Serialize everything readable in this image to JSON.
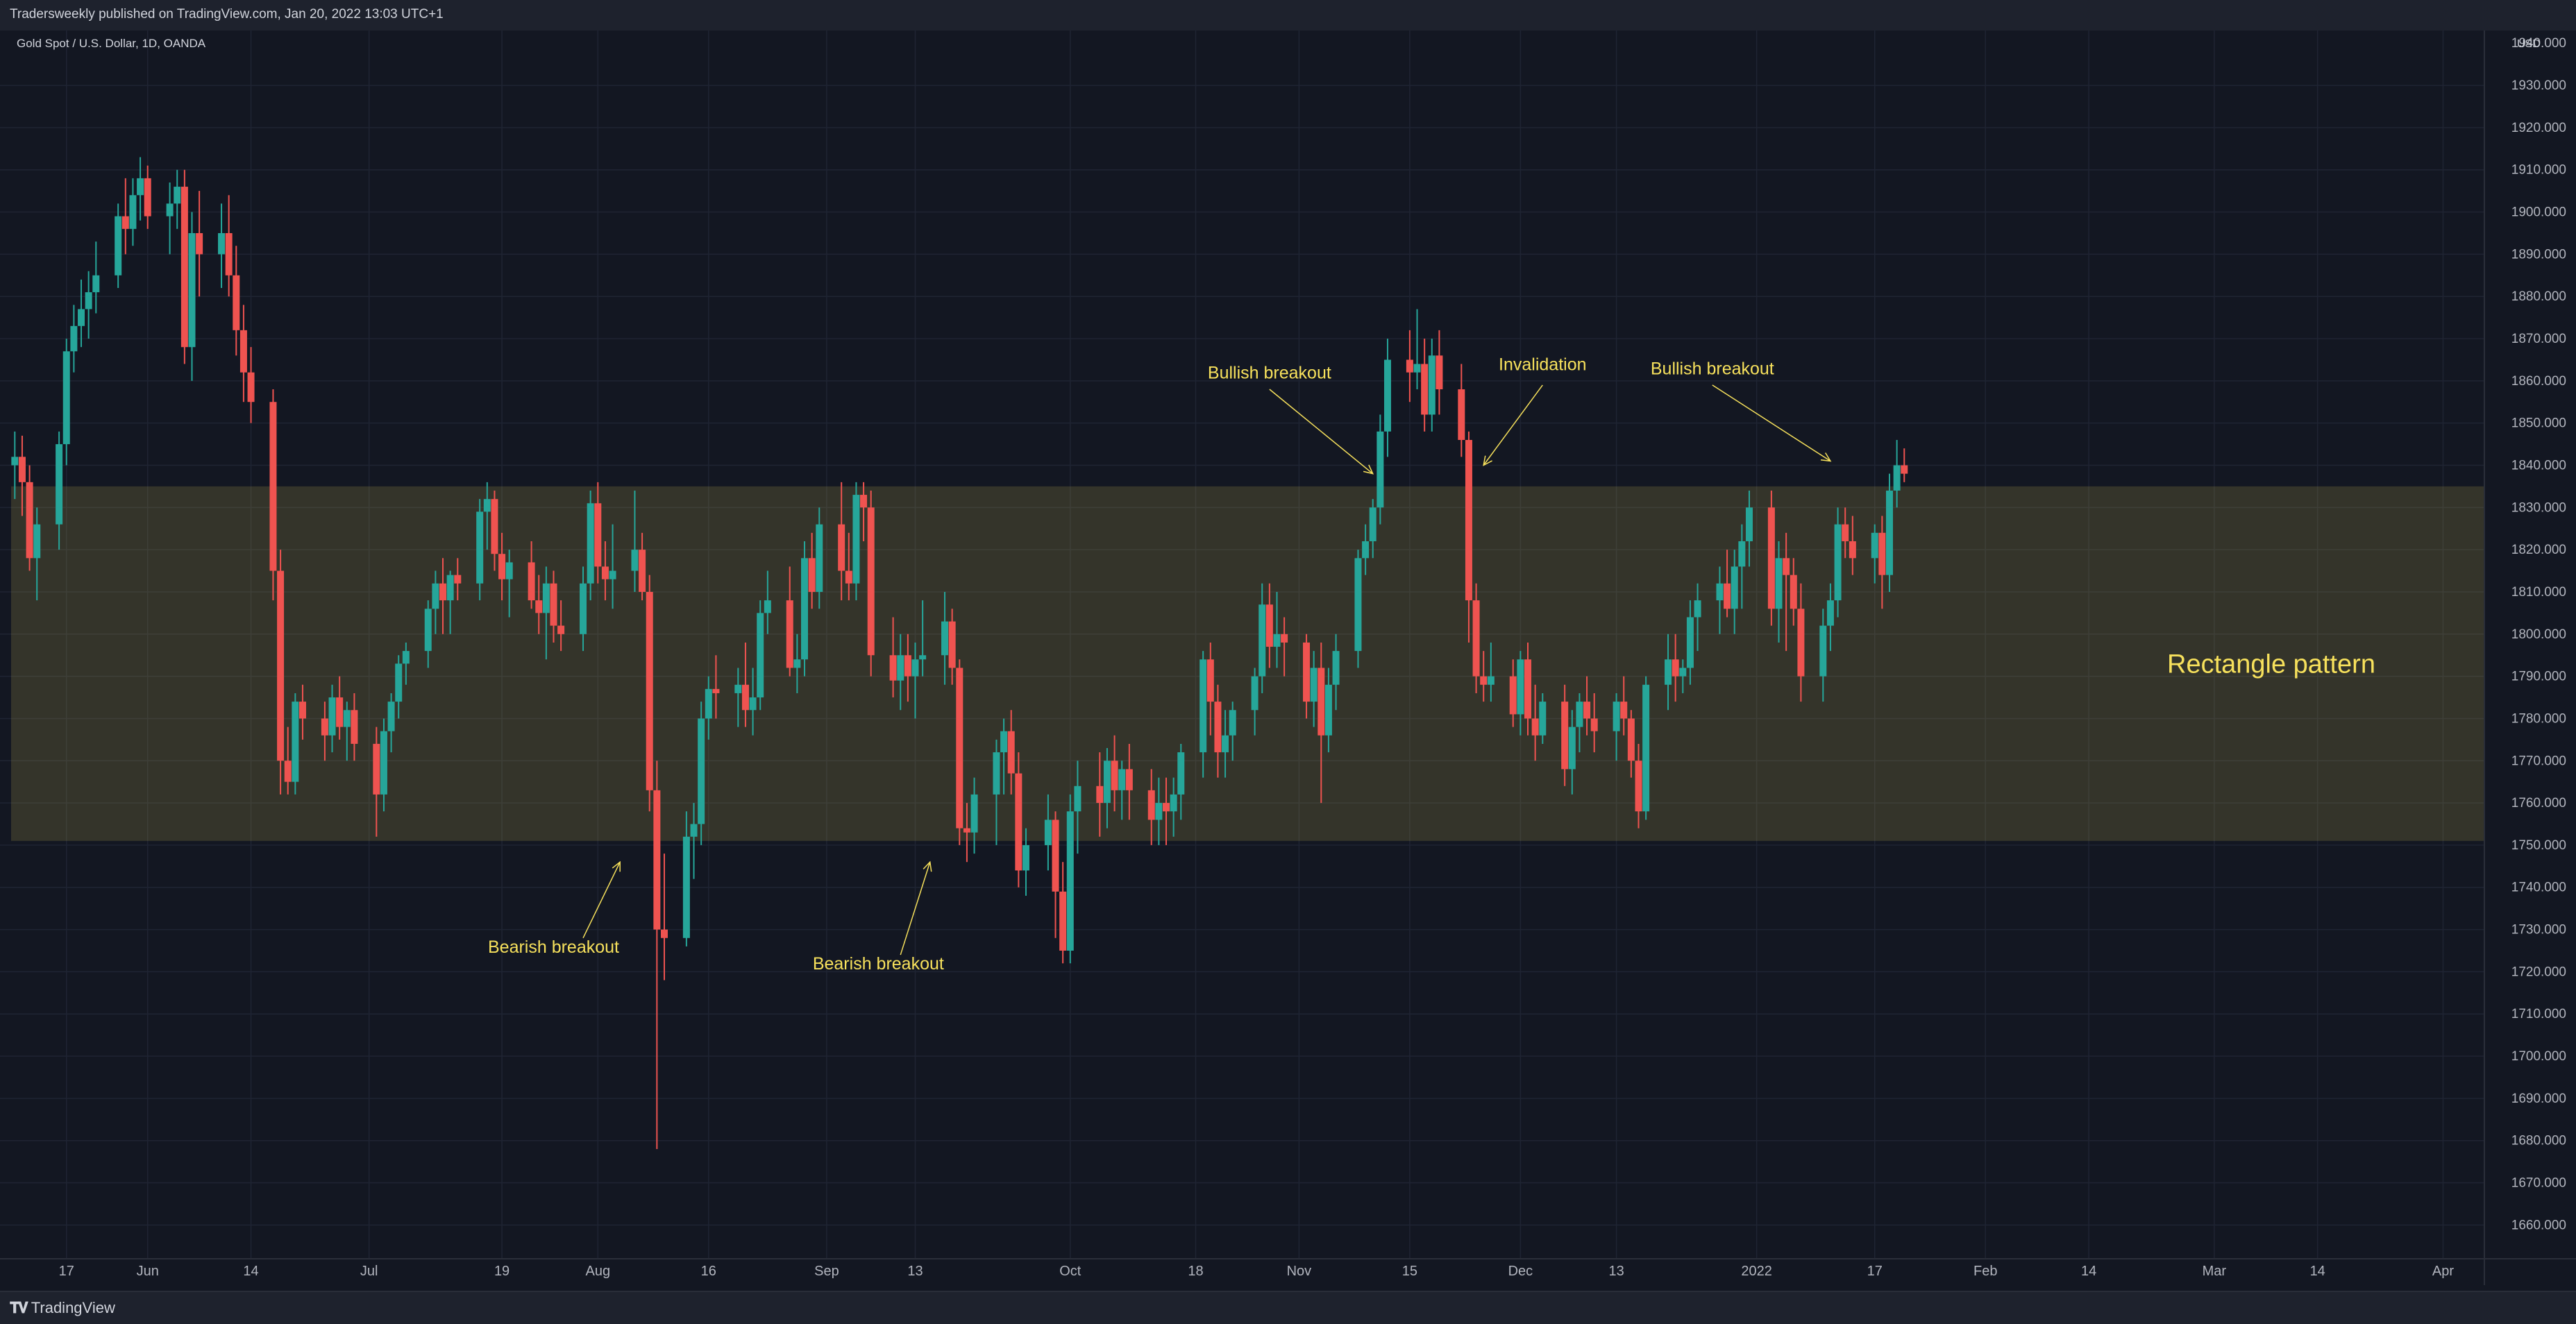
{
  "header": {
    "publisher_text": "Tradersweekly published on TradingView.com, Jan 20, 2022 13:03 UTC+1"
  },
  "footer": {
    "brand": "TradingView"
  },
  "chart_data": {
    "type": "candlestick",
    "title": "Gold Spot / U.S. Dollar, 1D, OANDA",
    "currency": "USD",
    "ylim": [
      1652,
      1943
    ],
    "y_ticks": [
      1660,
      1670,
      1680,
      1690,
      1700,
      1710,
      1720,
      1730,
      1740,
      1750,
      1760,
      1770,
      1780,
      1790,
      1800,
      1810,
      1820,
      1830,
      1840,
      1850,
      1860,
      1870,
      1880,
      1890,
      1900,
      1910,
      1920,
      1930
    ],
    "y_top_partial": "1940.000",
    "x_range_days": [
      -7,
      234
    ],
    "x_ticks": [
      {
        "day": 0,
        "label": "17"
      },
      {
        "day": 11,
        "label": "Jun"
      },
      {
        "day": 25,
        "label": "14"
      },
      {
        "day": 41,
        "label": "Jul"
      },
      {
        "day": 59,
        "label": "19"
      },
      {
        "day": 72,
        "label": "Aug"
      },
      {
        "day": 87,
        "label": "16"
      },
      {
        "day": 103,
        "label": "Sep"
      },
      {
        "day": 115,
        "label": "13"
      },
      {
        "day": 136,
        "label": "Oct"
      },
      {
        "day": 153,
        "label": "18"
      },
      {
        "day": 167,
        "label": "Nov"
      },
      {
        "day": 182,
        "label": "15"
      },
      {
        "day": 197,
        "label": "Dec"
      },
      {
        "day": 210,
        "label": "13"
      },
      {
        "day": 229,
        "label": "2022"
      },
      {
        "day": 245,
        "label": "17"
      },
      {
        "day": 260,
        "label": "Feb"
      },
      {
        "day": 274,
        "label": "14"
      },
      {
        "day": 291,
        "label": "Mar"
      },
      {
        "day": 305,
        "label": "14"
      },
      {
        "day": 322,
        "label": "Apr"
      }
    ],
    "rectangle": {
      "low": 1751,
      "high": 1835,
      "label": "Rectangle pattern"
    },
    "candles": [
      [
        -7,
        1840,
        1848,
        1832,
        1842
      ],
      [
        -6,
        1842,
        1847,
        1828,
        1836
      ],
      [
        -5,
        1836,
        1840,
        1815,
        1818
      ],
      [
        -4,
        1818,
        1830,
        1808,
        1826
      ],
      [
        -1,
        1826,
        1848,
        1820,
        1845
      ],
      [
        0,
        1845,
        1870,
        1840,
        1867
      ],
      [
        1,
        1867,
        1878,
        1862,
        1873
      ],
      [
        2,
        1873,
        1884,
        1868,
        1877
      ],
      [
        3,
        1877,
        1886,
        1870,
        1881
      ],
      [
        4,
        1881,
        1893,
        1876,
        1885
      ],
      [
        7,
        1885,
        1902,
        1882,
        1899
      ],
      [
        8,
        1899,
        1908,
        1890,
        1896
      ],
      [
        9,
        1896,
        1908,
        1892,
        1904
      ],
      [
        10,
        1904,
        1913,
        1898,
        1908
      ],
      [
        11,
        1908,
        1911,
        1896,
        1899
      ],
      [
        14,
        1899,
        1907,
        1890,
        1902
      ],
      [
        15,
        1902,
        1910,
        1896,
        1906
      ],
      [
        16,
        1906,
        1910,
        1864,
        1868
      ],
      [
        17,
        1868,
        1900,
        1860,
        1895
      ],
      [
        18,
        1895,
        1905,
        1880,
        1890
      ],
      [
        21,
        1890,
        1902,
        1882,
        1895
      ],
      [
        22,
        1895,
        1904,
        1880,
        1885
      ],
      [
        23,
        1885,
        1892,
        1866,
        1872
      ],
      [
        24,
        1872,
        1878,
        1855,
        1862
      ],
      [
        25,
        1862,
        1868,
        1850,
        1855
      ],
      [
        28,
        1855,
        1858,
        1808,
        1815
      ],
      [
        29,
        1815,
        1820,
        1762,
        1770
      ],
      [
        30,
        1770,
        1778,
        1762,
        1765
      ],
      [
        31,
        1765,
        1786,
        1762,
        1784
      ],
      [
        32,
        1784,
        1788,
        1775,
        1780
      ],
      [
        35,
        1780,
        1784,
        1770,
        1776
      ],
      [
        36,
        1776,
        1788,
        1772,
        1785
      ],
      [
        37,
        1785,
        1790,
        1775,
        1778
      ],
      [
        38,
        1778,
        1784,
        1770,
        1782
      ],
      [
        39,
        1782,
        1786,
        1770,
        1774
      ],
      [
        42,
        1774,
        1778,
        1752,
        1762
      ],
      [
        43,
        1762,
        1780,
        1758,
        1777
      ],
      [
        44,
        1777,
        1786,
        1772,
        1784
      ],
      [
        45,
        1784,
        1795,
        1780,
        1793
      ],
      [
        46,
        1793,
        1798,
        1788,
        1796
      ],
      [
        49,
        1796,
        1808,
        1792,
        1806
      ],
      [
        50,
        1806,
        1815,
        1800,
        1812
      ],
      [
        51,
        1812,
        1818,
        1800,
        1808
      ],
      [
        52,
        1808,
        1815,
        1800,
        1814
      ],
      [
        53,
        1814,
        1818,
        1808,
        1812
      ],
      [
        56,
        1812,
        1832,
        1808,
        1829
      ],
      [
        57,
        1829,
        1836,
        1820,
        1832
      ],
      [
        58,
        1832,
        1834,
        1815,
        1819
      ],
      [
        59,
        1819,
        1824,
        1808,
        1813
      ],
      [
        60,
        1813,
        1820,
        1804,
        1817
      ],
      [
        63,
        1817,
        1822,
        1806,
        1808
      ],
      [
        64,
        1808,
        1814,
        1800,
        1805
      ],
      [
        65,
        1805,
        1816,
        1794,
        1812
      ],
      [
        66,
        1812,
        1815,
        1798,
        1802
      ],
      [
        67,
        1802,
        1808,
        1796,
        1800
      ],
      [
        70,
        1800,
        1816,
        1796,
        1812
      ],
      [
        71,
        1812,
        1834,
        1808,
        1831
      ],
      [
        72,
        1831,
        1836,
        1812,
        1816
      ],
      [
        73,
        1816,
        1822,
        1808,
        1813
      ],
      [
        74,
        1813,
        1826,
        1806,
        1815
      ],
      [
        77,
        1815,
        1834,
        1810,
        1820
      ],
      [
        78,
        1820,
        1824,
        1808,
        1810
      ],
      [
        79,
        1810,
        1814,
        1758,
        1763
      ],
      [
        80,
        1763,
        1770,
        1678,
        1730
      ],
      [
        81,
        1730,
        1748,
        1718,
        1728
      ],
      [
        84,
        1728,
        1758,
        1726,
        1752
      ],
      [
        85,
        1752,
        1760,
        1742,
        1755
      ],
      [
        86,
        1755,
        1784,
        1750,
        1780
      ],
      [
        87,
        1780,
        1790,
        1775,
        1787
      ],
      [
        88,
        1787,
        1795,
        1780,
        1786
      ],
      [
        91,
        1786,
        1792,
        1778,
        1788
      ],
      [
        92,
        1788,
        1798,
        1778,
        1782
      ],
      [
        93,
        1782,
        1792,
        1776,
        1785
      ],
      [
        94,
        1785,
        1808,
        1782,
        1805
      ],
      [
        95,
        1805,
        1815,
        1800,
        1808
      ],
      [
        98,
        1808,
        1816,
        1790,
        1792
      ],
      [
        99,
        1792,
        1800,
        1786,
        1794
      ],
      [
        100,
        1794,
        1822,
        1790,
        1818
      ],
      [
        101,
        1818,
        1824,
        1806,
        1810
      ],
      [
        102,
        1810,
        1830,
        1806,
        1826
      ],
      [
        105,
        1826,
        1836,
        1808,
        1815
      ],
      [
        106,
        1815,
        1824,
        1808,
        1812
      ],
      [
        107,
        1812,
        1836,
        1808,
        1833
      ],
      [
        108,
        1833,
        1836,
        1822,
        1830
      ],
      [
        109,
        1830,
        1834,
        1790,
        1795
      ],
      [
        112,
        1795,
        1804,
        1785,
        1789
      ],
      [
        113,
        1789,
        1800,
        1782,
        1795
      ],
      [
        114,
        1795,
        1800,
        1784,
        1790
      ],
      [
        115,
        1790,
        1798,
        1780,
        1794
      ],
      [
        116,
        1794,
        1808,
        1790,
        1795
      ],
      [
        119,
        1795,
        1810,
        1788,
        1803
      ],
      [
        120,
        1803,
        1806,
        1788,
        1792
      ],
      [
        121,
        1792,
        1794,
        1750,
        1754
      ],
      [
        122,
        1754,
        1760,
        1746,
        1753
      ],
      [
        123,
        1753,
        1766,
        1748,
        1762
      ],
      [
        126,
        1762,
        1775,
        1750,
        1772
      ],
      [
        127,
        1772,
        1780,
        1762,
        1777
      ],
      [
        128,
        1777,
        1782,
        1762,
        1767
      ],
      [
        129,
        1767,
        1772,
        1740,
        1744
      ],
      [
        130,
        1744,
        1754,
        1738,
        1750
      ],
      [
        133,
        1750,
        1762,
        1744,
        1756
      ],
      [
        134,
        1756,
        1758,
        1728,
        1739
      ],
      [
        135,
        1739,
        1746,
        1722,
        1725
      ],
      [
        136,
        1725,
        1762,
        1722,
        1758
      ],
      [
        137,
        1758,
        1770,
        1748,
        1764
      ],
      [
        140,
        1764,
        1772,
        1752,
        1760
      ],
      [
        141,
        1760,
        1773,
        1754,
        1770
      ],
      [
        142,
        1770,
        1776,
        1758,
        1763
      ],
      [
        143,
        1763,
        1770,
        1756,
        1768
      ],
      [
        144,
        1768,
        1774,
        1756,
        1763
      ],
      [
        147,
        1763,
        1768,
        1750,
        1756
      ],
      [
        148,
        1756,
        1766,
        1750,
        1760
      ],
      [
        149,
        1760,
        1766,
        1750,
        1758
      ],
      [
        150,
        1758,
        1766,
        1752,
        1762
      ],
      [
        151,
        1762,
        1774,
        1756,
        1772
      ],
      [
        154,
        1772,
        1796,
        1766,
        1794
      ],
      [
        155,
        1794,
        1798,
        1776,
        1784
      ],
      [
        156,
        1784,
        1788,
        1766,
        1772
      ],
      [
        157,
        1772,
        1782,
        1766,
        1776
      ],
      [
        158,
        1776,
        1784,
        1770,
        1782
      ],
      [
        161,
        1782,
        1792,
        1776,
        1790
      ],
      [
        162,
        1790,
        1812,
        1786,
        1807
      ],
      [
        163,
        1807,
        1812,
        1792,
        1797
      ],
      [
        164,
        1797,
        1810,
        1792,
        1800
      ],
      [
        165,
        1800,
        1804,
        1790,
        1798
      ],
      [
        168,
        1798,
        1800,
        1780,
        1784
      ],
      [
        169,
        1784,
        1796,
        1778,
        1792
      ],
      [
        170,
        1792,
        1798,
        1760,
        1776
      ],
      [
        171,
        1776,
        1792,
        1772,
        1788
      ],
      [
        172,
        1788,
        1800,
        1782,
        1796
      ],
      [
        175,
        1796,
        1820,
        1792,
        1818
      ],
      [
        176,
        1818,
        1826,
        1814,
        1822
      ],
      [
        177,
        1822,
        1832,
        1818,
        1830
      ],
      [
        178,
        1830,
        1852,
        1826,
        1848
      ],
      [
        179,
        1848,
        1870,
        1842,
        1865
      ],
      [
        182,
        1865,
        1872,
        1855,
        1862
      ],
      [
        183,
        1862,
        1877,
        1858,
        1864
      ],
      [
        184,
        1864,
        1870,
        1848,
        1852
      ],
      [
        185,
        1852,
        1870,
        1848,
        1866
      ],
      [
        186,
        1866,
        1872,
        1852,
        1858
      ],
      [
        189,
        1858,
        1864,
        1842,
        1846
      ],
      [
        190,
        1846,
        1848,
        1798,
        1808
      ],
      [
        191,
        1808,
        1812,
        1786,
        1790
      ],
      [
        192,
        1790,
        1796,
        1784,
        1788
      ],
      [
        193,
        1788,
        1798,
        1784,
        1790
      ],
      [
        196,
        1790,
        1794,
        1778,
        1781
      ],
      [
        197,
        1781,
        1796,
        1776,
        1794
      ],
      [
        198,
        1794,
        1798,
        1776,
        1780
      ],
      [
        199,
        1780,
        1788,
        1770,
        1776
      ],
      [
        200,
        1776,
        1786,
        1774,
        1784
      ],
      [
        203,
        1784,
        1788,
        1764,
        1768
      ],
      [
        204,
        1768,
        1782,
        1762,
        1778
      ],
      [
        205,
        1778,
        1786,
        1772,
        1784
      ],
      [
        206,
        1784,
        1790,
        1776,
        1780
      ],
      [
        207,
        1780,
        1786,
        1772,
        1777
      ],
      [
        210,
        1777,
        1786,
        1770,
        1784
      ],
      [
        211,
        1784,
        1790,
        1776,
        1780
      ],
      [
        212,
        1780,
        1782,
        1766,
        1770
      ],
      [
        213,
        1770,
        1774,
        1754,
        1758
      ],
      [
        214,
        1758,
        1790,
        1756,
        1788
      ],
      [
        217,
        1788,
        1800,
        1782,
        1794
      ],
      [
        218,
        1794,
        1800,
        1784,
        1790
      ],
      [
        219,
        1790,
        1794,
        1786,
        1792
      ],
      [
        220,
        1792,
        1808,
        1788,
        1804
      ],
      [
        221,
        1804,
        1812,
        1796,
        1808
      ],
      [
        224,
        1808,
        1816,
        1800,
        1812
      ],
      [
        225,
        1812,
        1820,
        1804,
        1806
      ],
      [
        226,
        1806,
        1820,
        1800,
        1816
      ],
      [
        227,
        1816,
        1826,
        1806,
        1822
      ],
      [
        228,
        1822,
        1834,
        1816,
        1830
      ],
      [
        231,
        1830,
        1834,
        1802,
        1806
      ],
      [
        232,
        1806,
        1822,
        1798,
        1818
      ],
      [
        233,
        1818,
        1824,
        1796,
        1814
      ],
      [
        234,
        1814,
        1818,
        1802,
        1806
      ],
      [
        235,
        1806,
        1812,
        1784,
        1790
      ],
      [
        238,
        1790,
        1806,
        1784,
        1802
      ],
      [
        239,
        1802,
        1812,
        1796,
        1808
      ],
      [
        240,
        1808,
        1830,
        1804,
        1826
      ],
      [
        241,
        1826,
        1830,
        1818,
        1822
      ],
      [
        242,
        1822,
        1828,
        1814,
        1818
      ],
      [
        245,
        1818,
        1826,
        1812,
        1824
      ],
      [
        246,
        1824,
        1828,
        1806,
        1814
      ],
      [
        247,
        1814,
        1838,
        1810,
        1834
      ],
      [
        248,
        1834,
        1846,
        1830,
        1840
      ],
      [
        249,
        1840,
        1844,
        1836,
        1838
      ]
    ],
    "annotations": [
      {
        "id": "bearish-breakout-1",
        "text": "Bearish breakout",
        "day": 66,
        "price": 1726,
        "arrow_from": [
          70,
          1728
        ],
        "arrow_to": [
          75,
          1746
        ]
      },
      {
        "id": "bearish-breakout-2",
        "text": "Bearish breakout",
        "day": 110,
        "price": 1722,
        "arrow_from": [
          113,
          1724
        ],
        "arrow_to": [
          117,
          1746
        ]
      },
      {
        "id": "bullish-breakout-1",
        "text": "Bullish breakout",
        "day": 163,
        "price": 1862,
        "arrow_from": [
          163,
          1858
        ],
        "arrow_to": [
          177,
          1838
        ]
      },
      {
        "id": "invalidation",
        "text": "Invalidation",
        "day": 200,
        "price": 1864,
        "arrow_from": [
          200,
          1859
        ],
        "arrow_to": [
          192,
          1840
        ]
      },
      {
        "id": "bullish-breakout-2",
        "text": "Bullish breakout",
        "day": 223,
        "price": 1863,
        "arrow_from": [
          223,
          1859
        ],
        "arrow_to": [
          239,
          1841
        ]
      }
    ],
    "colors": {
      "up": "#26a69a",
      "down": "#ef5350",
      "rectangle": "#ccbb55",
      "annotation": "#f7e15c",
      "grid": "#1f2433",
      "axis_text": "#b2b5be"
    }
  }
}
